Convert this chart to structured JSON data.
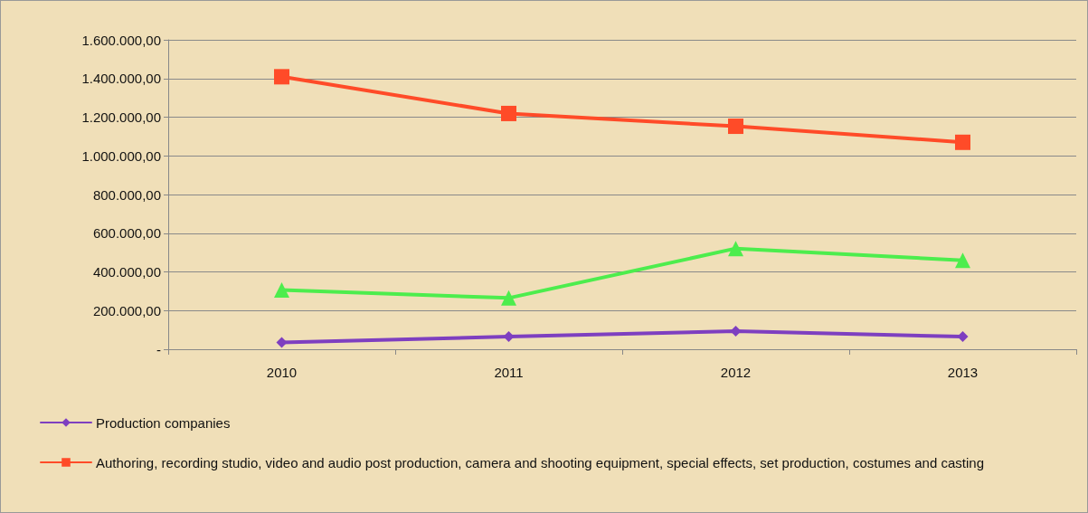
{
  "chart_data": {
    "type": "line",
    "categories": [
      "2010",
      "2011",
      "2012",
      "2013"
    ],
    "series": [
      {
        "name": "Production companies",
        "color": "#7e3fc0",
        "marker": "diamond",
        "values": [
          35000,
          65000,
          93000,
          65000
        ]
      },
      {
        "name": "Authoring, recording studio, video and audio post production, camera and shooting equipment, special effects, set production, costumes and casting",
        "color": "#ff4b28",
        "marker": "square",
        "values": [
          1409000,
          1219000,
          1153000,
          1070000
        ]
      },
      {
        "color": "#4ded4d",
        "marker": "triangle",
        "values": [
          307000,
          265000,
          521000,
          460000
        ]
      }
    ],
    "ylim": [
      0,
      1600000
    ],
    "yticks": [
      {
        "value": 0,
        "label": "-"
      },
      {
        "value": 200000,
        "label": "200.000,00"
      },
      {
        "value": 400000,
        "label": "400.000,00"
      },
      {
        "value": 600000,
        "label": "600.000,00"
      },
      {
        "value": 800000,
        "label": "800.000,00"
      },
      {
        "value": 1000000,
        "label": "1.000.000,00"
      },
      {
        "value": 1200000,
        "label": "1.200.000,00"
      },
      {
        "value": 1400000,
        "label": "1.400.000,00"
      },
      {
        "value": 1600000,
        "label": "1.600.000,00"
      }
    ],
    "grid": "y",
    "legend": "bottom",
    "line_style": "solid"
  }
}
